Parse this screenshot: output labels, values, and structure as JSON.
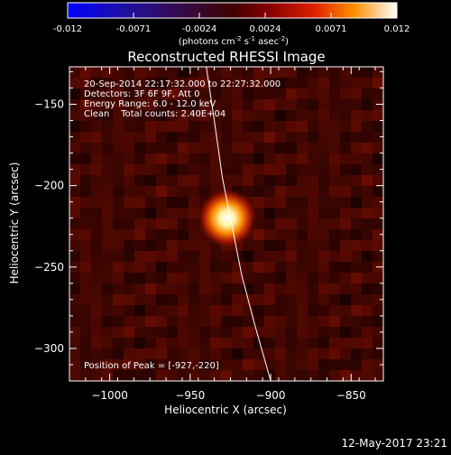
{
  "colorbar": {
    "ticks": [
      "-0.012",
      "-0.0071",
      "-0.0024",
      "0.0024",
      "0.0071",
      "0.012"
    ],
    "units_prefix": "(photons cm",
    "units_exp1": "-2",
    "units_mid": " s",
    "units_exp2": "-1",
    "units_mid2": " asec",
    "units_exp3": "-2",
    "units_suffix": ")"
  },
  "chart_data": {
    "type": "heatmap",
    "title": "Reconstructed RHESSI Image",
    "xlabel": "Heliocentric X (arcsec)",
    "ylabel": "Heliocentric Y (arcsec)",
    "xlim": [
      -1025,
      -830
    ],
    "ylim": [
      -320,
      -127
    ],
    "x_ticks": [
      -1000,
      -950,
      -900,
      -850
    ],
    "y_ticks": [
      -150,
      -200,
      -250,
      -300
    ],
    "x_tick_labels": [
      "−1000",
      "−950",
      "−900",
      "−850"
    ],
    "y_tick_labels": [
      "−150",
      "−200",
      "−250",
      "−300"
    ],
    "peak": {
      "x": -927,
      "y": -220
    },
    "limb": [
      [
        -940,
        -127
      ],
      [
        -935,
        -160
      ],
      [
        -930,
        -195
      ],
      [
        -925,
        -220
      ],
      [
        -918,
        -255
      ],
      [
        -910,
        -285
      ],
      [
        -900,
        -320
      ]
    ],
    "colorbar_range": [
      -0.012,
      0.012
    ],
    "annotations": [
      "20-Sep-2014 22:17:32.000 to 22:27:32.000",
      "Detectors: 3F 6F 9F, Att 0",
      "Energy Range: 6.0 - 12.0 keV",
      "Clean    Total counts: 2.40E+04",
      "Position of Peak = [-927,-220]"
    ],
    "footer": "12-May-2017 23:21"
  }
}
